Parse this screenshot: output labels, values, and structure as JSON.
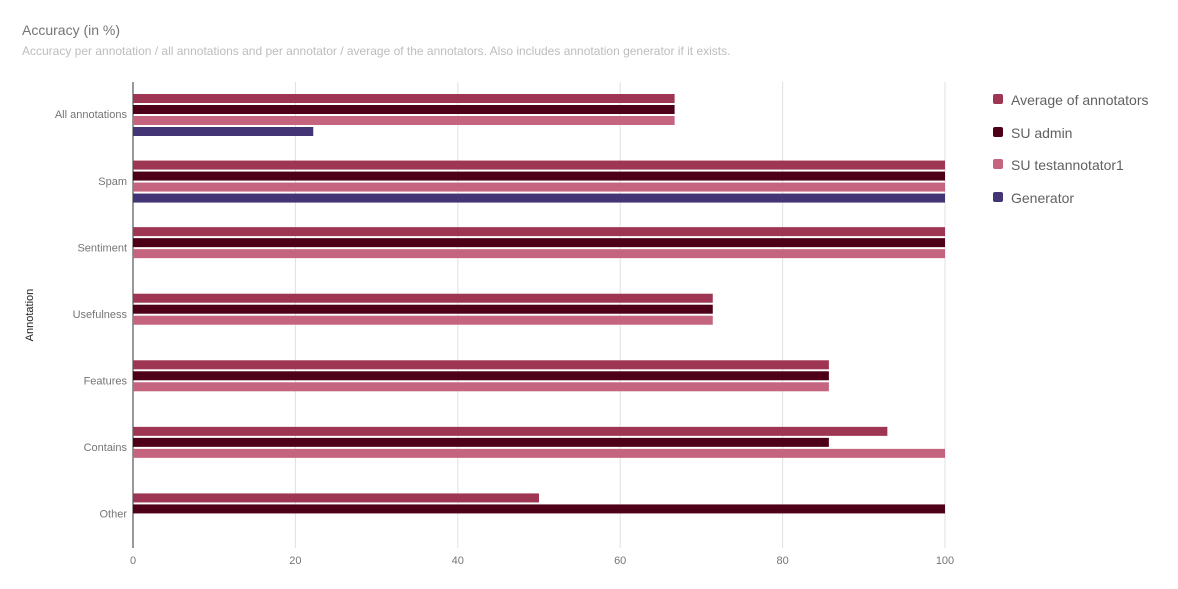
{
  "chart_data": {
    "type": "bar",
    "orientation": "horizontal",
    "title": "Accuracy (in %)",
    "subtitle": "Accuracy per annotation / all annotations and per annotator / average of the annotators. Also includes annotation generator if it exists.",
    "ylabel": "Annotation",
    "xlabel": "",
    "xlim": [
      0,
      100
    ],
    "xticks": [
      0,
      20,
      40,
      60,
      80,
      100
    ],
    "grid": true,
    "legend_position": "right",
    "categories": [
      "All annotations",
      "Spam",
      "Sentiment",
      "Usefulness",
      "Features",
      "Contains",
      "Other"
    ],
    "series": [
      {
        "name": "Average of annotators",
        "color": "#9e3553",
        "values": [
          66.7,
          100,
          100,
          71.4,
          85.7,
          92.9,
          50
        ]
      },
      {
        "name": "SU admin",
        "color": "#4d0018",
        "values": [
          66.7,
          100,
          100,
          71.4,
          85.7,
          85.7,
          100
        ]
      },
      {
        "name": "SU testannotator1",
        "color": "#c4647e",
        "values": [
          66.7,
          100,
          100,
          71.4,
          85.7,
          100,
          null
        ]
      },
      {
        "name": "Generator",
        "color": "#433575",
        "values": [
          22.2,
          100,
          null,
          null,
          null,
          null,
          null
        ]
      }
    ]
  }
}
